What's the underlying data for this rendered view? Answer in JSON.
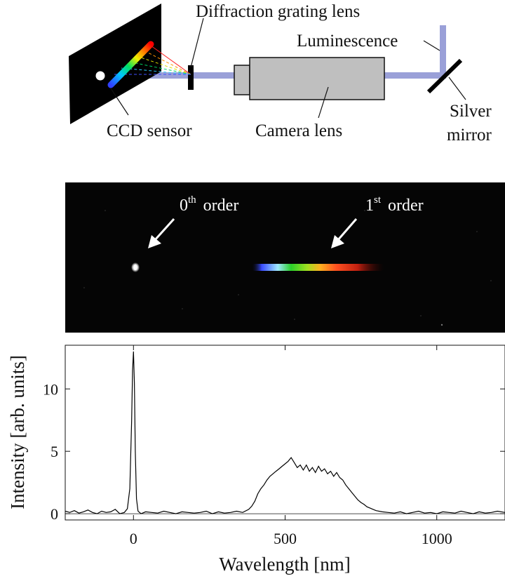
{
  "setup": {
    "labels": {
      "grating": "Diffraction grating lens",
      "luminescence": "Luminescence",
      "ccd": "CCD sensor",
      "camera_lens": "Camera lens",
      "mirror_line1": "Silver",
      "mirror_line2": "mirror"
    },
    "colors": {
      "beam": "#9aa0d8",
      "lens_body": "#bfbfbf",
      "sensor": "#000000"
    }
  },
  "sensor_image": {
    "zeroth_label": {
      "base": "0",
      "sup": "th",
      "rest": "order"
    },
    "first_label": {
      "base": "1",
      "sup": "st",
      "rest": "order"
    }
  },
  "chart_data": {
    "type": "line",
    "xlabel": "Wavelength [nm]",
    "ylabel": "Intensity [arb. units]",
    "xlim": [
      -225,
      1225
    ],
    "ylim": [
      -0.5,
      13.5
    ],
    "xticks": [
      0,
      500,
      1000
    ],
    "yticks": [
      0,
      5,
      10
    ],
    "grid": false,
    "series": [
      {
        "x": [
          -225,
          -210,
          -195,
          -180,
          -165,
          -150,
          -135,
          -120,
          -105,
          -90,
          -75,
          -60,
          -45,
          -30,
          -20,
          -12,
          -6,
          -3,
          0,
          3,
          6,
          10,
          15,
          25,
          40,
          60,
          80,
          100,
          120,
          140,
          160,
          180,
          200,
          220,
          240,
          260,
          280,
          300,
          320,
          340,
          360,
          380,
          390,
          400,
          410,
          420,
          430,
          440,
          450,
          460,
          470,
          480,
          490,
          500,
          510,
          520,
          530,
          540,
          550,
          560,
          570,
          580,
          590,
          600,
          610,
          620,
          630,
          640,
          650,
          660,
          670,
          680,
          690,
          700,
          710,
          720,
          730,
          740,
          750,
          760,
          770,
          780,
          790,
          800,
          820,
          840,
          860,
          880,
          900,
          920,
          940,
          960,
          980,
          1000,
          1020,
          1040,
          1060,
          1080,
          1100,
          1120,
          1140,
          1160,
          1180,
          1200,
          1225
        ],
        "y": [
          0.2,
          0.1,
          0.25,
          0.05,
          0.15,
          0.3,
          0.1,
          0.0,
          0.2,
          0.1,
          0.15,
          0.35,
          0.0,
          0.1,
          0.4,
          2.0,
          7.5,
          11.5,
          13.0,
          10.5,
          5.0,
          1.2,
          0.2,
          0.0,
          0.15,
          0.1,
          0.05,
          0.2,
          0.1,
          0.0,
          0.15,
          0.1,
          0.05,
          0.1,
          0.2,
          0.0,
          0.15,
          0.05,
          0.1,
          0.2,
          0.1,
          0.35,
          0.6,
          1.0,
          1.6,
          2.0,
          2.3,
          2.7,
          3.0,
          3.2,
          3.4,
          3.6,
          3.8,
          4.0,
          4.2,
          4.5,
          4.1,
          3.7,
          3.9,
          3.5,
          3.9,
          3.4,
          3.7,
          3.3,
          3.8,
          3.4,
          3.6,
          3.2,
          3.4,
          3.0,
          3.3,
          2.9,
          2.7,
          2.3,
          2.0,
          1.7,
          1.4,
          1.1,
          0.9,
          0.75,
          0.55,
          0.45,
          0.35,
          0.25,
          0.15,
          0.1,
          0.05,
          0.15,
          0.0,
          0.1,
          0.2,
          0.05,
          0.1,
          0.0,
          0.15,
          0.1,
          0.05,
          0.2,
          0.1,
          0.0,
          0.15,
          0.05,
          0.1,
          0.2,
          0.1
        ]
      }
    ]
  }
}
